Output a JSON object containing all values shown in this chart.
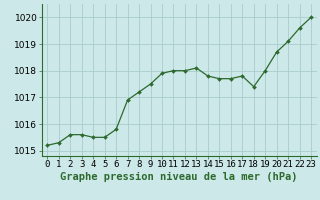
{
  "x": [
    0,
    1,
    2,
    3,
    4,
    5,
    6,
    7,
    8,
    9,
    10,
    11,
    12,
    13,
    14,
    15,
    16,
    17,
    18,
    19,
    20,
    21,
    22,
    23
  ],
  "y": [
    1015.2,
    1015.3,
    1015.6,
    1015.6,
    1015.5,
    1015.5,
    1015.8,
    1016.9,
    1017.2,
    1017.5,
    1017.9,
    1018.0,
    1018.0,
    1018.1,
    1017.8,
    1017.7,
    1017.7,
    1017.8,
    1017.4,
    1018.0,
    1018.7,
    1019.1,
    1019.6,
    1020.0
  ],
  "line_color": "#2d6a2d",
  "marker": "D",
  "marker_size": 2.0,
  "bg_color": "#cce8e8",
  "grid_color": "#aacccc",
  "ylim": [
    1014.8,
    1020.5
  ],
  "xlim": [
    -0.5,
    23.5
  ],
  "yticks": [
    1015,
    1016,
    1017,
    1018,
    1019,
    1020
  ],
  "xtick_labels": [
    "0",
    "1",
    "2",
    "3",
    "4",
    "5",
    "6",
    "7",
    "8",
    "9",
    "10",
    "11",
    "12",
    "13",
    "14",
    "15",
    "16",
    "17",
    "18",
    "19",
    "20",
    "21",
    "22",
    "23"
  ],
  "xlabel": "Graphe pression niveau de la mer (hPa)",
  "xlabel_fontsize": 7.5,
  "tick_fontsize": 6.5,
  "ytick_fontsize": 6.5,
  "linewidth": 0.9
}
